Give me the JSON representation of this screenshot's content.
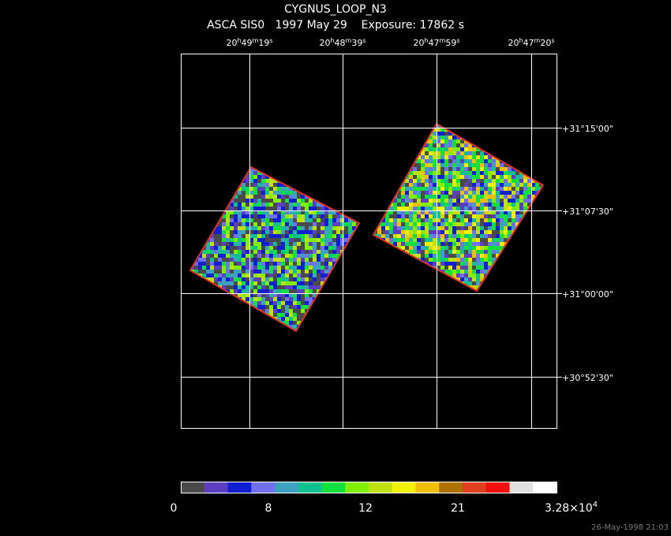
{
  "header": {
    "title": "CYGNUS_LOOP_N3",
    "subtitle": "ASCA SIS0   1997 May 29    Exposure: 17862 s"
  },
  "ra_labels": [
    [
      "20",
      "h",
      "49",
      "m",
      "19",
      "s"
    ],
    [
      "20",
      "h",
      "48",
      "m",
      "39",
      "s"
    ],
    [
      "20",
      "h",
      "47",
      "m",
      "59",
      "s"
    ],
    [
      "20",
      "h",
      "47",
      "m",
      "20",
      "s"
    ]
  ],
  "dec_labels": [
    "+31°15'00\"",
    "+31°07'30\"",
    "+31°00'00\"",
    "+30°52'30\""
  ],
  "colorbar": {
    "colors": [
      "#4a4a4a",
      "#5b3fc0",
      "#1020d0",
      "#7070f0",
      "#40a0c0",
      "#10c090",
      "#10e040",
      "#80f000",
      "#c0e010",
      "#f0f000",
      "#f0c000",
      "#b07000",
      "#e04020",
      "#f01010",
      "#e0e0e0",
      "#ffffff"
    ],
    "labels": [
      "0",
      "8",
      "12",
      "21"
    ],
    "max_label": {
      "mantissa": "3.28×10",
      "exponent": "4"
    }
  },
  "footer": "26-May-1998 21:03"
}
